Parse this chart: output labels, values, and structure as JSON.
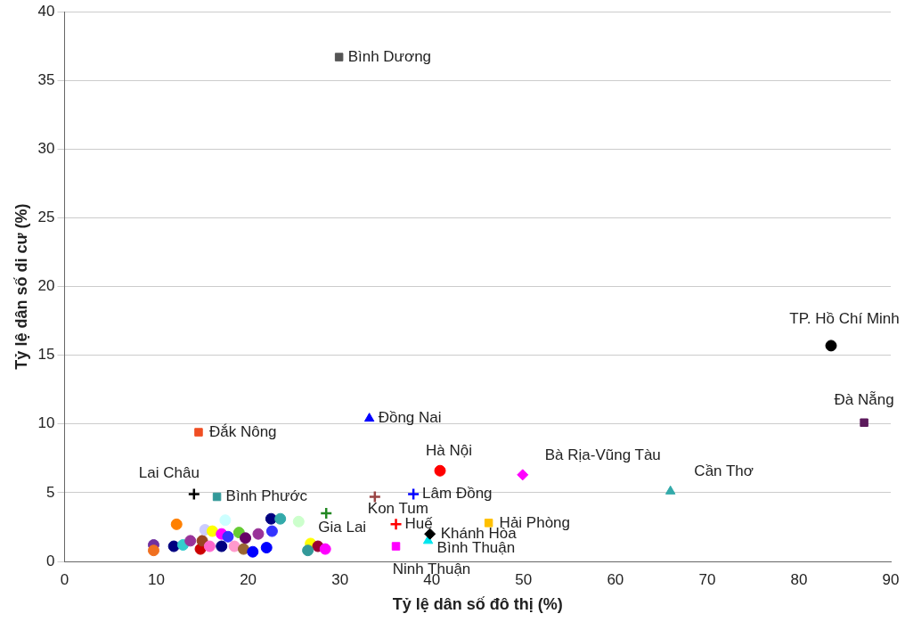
{
  "chart_data": {
    "type": "scatter",
    "xlabel": "Tỷ lệ dân số đô thị (%)",
    "ylabel": "Tỷ lệ dân số di cư (%)",
    "xlim": [
      0,
      90
    ],
    "xticks": [
      0,
      10,
      20,
      30,
      40,
      50,
      60,
      70,
      80,
      90
    ],
    "ylim": [
      0,
      40
    ],
    "yticks": [
      0,
      5,
      10,
      15,
      20,
      25,
      30,
      35,
      40
    ],
    "grid": "y",
    "legend": false,
    "series": [
      {
        "name": "Bình Dương",
        "color": "#555555",
        "marker": "square",
        "x": [
          29.9
        ],
        "values": [
          36.7
        ]
      },
      {
        "name": "TP. Hồ Chí Minh",
        "color": "#000000",
        "marker": "circle",
        "x": [
          83.5
        ],
        "values": [
          15.7
        ]
      },
      {
        "name": "Đà Nẵng",
        "color": "#5c1a5c",
        "marker": "square",
        "x": [
          87.1
        ],
        "values": [
          10.1
        ]
      },
      {
        "name": "Đắk Nông",
        "color": "#f04e23",
        "marker": "square",
        "x": [
          14.6
        ],
        "values": [
          9.4
        ]
      },
      {
        "name": "Đồng Nai",
        "color": "#0000ff",
        "marker": "triangle",
        "x": [
          33.2
        ],
        "values": [
          10.4
        ]
      },
      {
        "name": "Hà Nội",
        "color": "#ff0000",
        "marker": "circle",
        "x": [
          40.9
        ],
        "values": [
          6.6
        ]
      },
      {
        "name": "Bà Rịa-Vũng Tàu",
        "color": "#ff00ff",
        "marker": "diamond",
        "x": [
          49.9
        ],
        "values": [
          6.3
        ]
      },
      {
        "name": "Cần Thơ",
        "color": "#33aaaa",
        "marker": "triangle",
        "x": [
          66.0
        ],
        "values": [
          5.1
        ]
      },
      {
        "name": "Lai Châu",
        "color": "#000000",
        "marker": "cross",
        "x": [
          14.1
        ],
        "values": [
          4.9
        ]
      },
      {
        "name": "Bình Phước",
        "color": "#339999",
        "marker": "square",
        "x": [
          16.6
        ],
        "values": [
          4.7
        ]
      },
      {
        "name": "Lâm Đồng",
        "color": "#0000ff",
        "marker": "cross",
        "x": [
          38.0
        ],
        "values": [
          4.9
        ]
      },
      {
        "name": "Kon Tum",
        "color": "#994444",
        "marker": "cross",
        "x": [
          33.8
        ],
        "values": [
          4.7
        ]
      },
      {
        "name": "Gia Lai",
        "color": "#228822",
        "marker": "cross",
        "x": [
          28.5
        ],
        "values": [
          3.5
        ]
      },
      {
        "name": "Huế",
        "color": "#ff0000",
        "marker": "cross",
        "x": [
          36.1
        ],
        "values": [
          2.7
        ]
      },
      {
        "name": "Khánh Hòa",
        "color": "#000000",
        "marker": "diamond",
        "x": [
          39.8
        ],
        "values": [
          2.0
        ]
      },
      {
        "name": "Bình Thuận",
        "color": "#00e5ee",
        "marker": "triangle",
        "x": [
          39.6
        ],
        "values": [
          1.5
        ]
      },
      {
        "name": "Ninh Thuận",
        "color": "#ff00ff",
        "marker": "square",
        "x": [
          36.1
        ],
        "values": [
          1.1
        ]
      },
      {
        "name": "Hải Phòng",
        "color": "#ffc000",
        "marker": "square",
        "x": [
          46.2
        ],
        "values": [
          2.8
        ]
      },
      {
        "marker": "circle",
        "x": [
          9.7,
          9.7,
          12.2,
          11.9,
          12.9,
          13.7,
          14.8,
          15.0,
          15.3,
          16.1,
          15.8,
          17.1,
          17.1,
          17.5,
          17.8,
          18.5,
          19.5,
          19.0,
          19.7,
          20.5,
          21.1,
          22.0,
          22.5,
          23.5,
          22.6,
          25.5,
          26.8,
          27.6,
          28.4,
          26.5
        ],
        "values": [
          1.2,
          0.8,
          2.7,
          1.1,
          1.2,
          1.5,
          0.9,
          1.5,
          2.3,
          2.2,
          1.1,
          2.0,
          1.1,
          3.0,
          1.8,
          1.1,
          0.9,
          2.1,
          1.7,
          0.7,
          2.0,
          1.0,
          3.1,
          3.1,
          2.2,
          2.9,
          1.3,
          1.1,
          0.9,
          0.8
        ],
        "colors": [
          "#7030a0",
          "#f07020",
          "#ff8000",
          "#000080",
          "#33cccc",
          "#993399",
          "#cc0000",
          "#994422",
          "#ccccff",
          "#ffff00",
          "#ff66cc",
          "#ff00ff",
          "#000080",
          "#ccffff",
          "#3333ff",
          "#ff99cc",
          "#996633",
          "#66cc33",
          "#660066",
          "#0000ff",
          "#993399",
          "#0000ff",
          "#000080",
          "#33aaaa",
          "#3333ff",
          "#ccffcc",
          "#ffff00",
          "#990033",
          "#ff00ff",
          "#339999"
        ]
      }
    ]
  }
}
